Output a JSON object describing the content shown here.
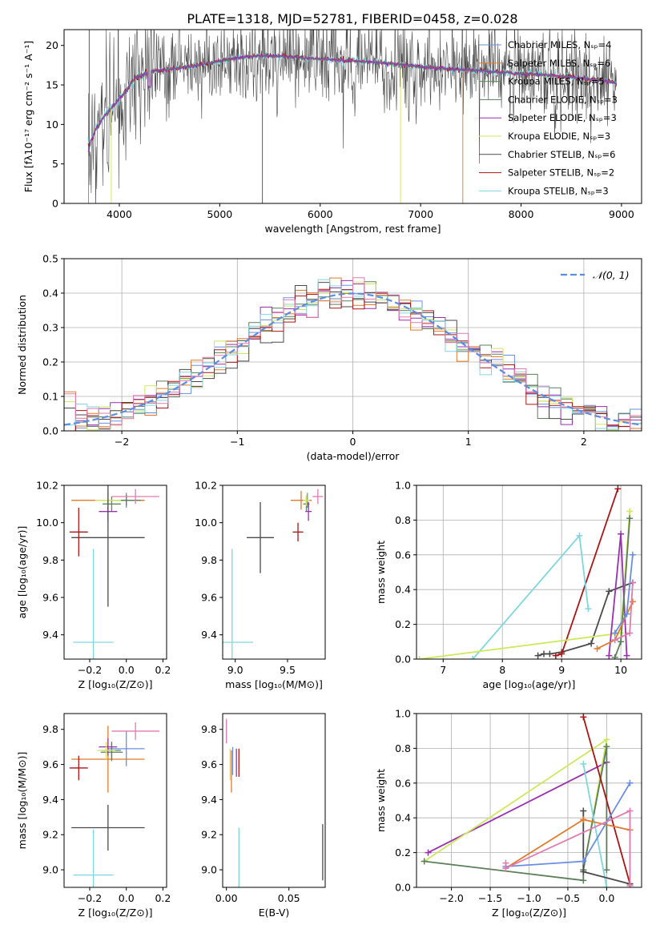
{
  "colors": {
    "Chabrier MILES": "#6a8fe0",
    "Salpeter MILES": "#e07a2a",
    "Kroupa MILES": "#5a8a5a",
    "Chabrier ELODIE": "#5a7f5a",
    "Salpeter ELODIE": "#9a2fb0",
    "Kroupa ELODIE": "#cde85a",
    "Chabrier STELIB": "#4a4a4a",
    "Salpeter STELIB": "#aa1515",
    "Kroupa STELIB": "#7fd6de",
    "pink": "#e07ab0",
    "gauss": "#5b8de0"
  },
  "chart_data": [
    {
      "id": "spectrum",
      "type": "line",
      "title": "PLATE=1318, MJD=52781, FIBERID=0458, z=0.028",
      "xlabel": "wavelength [Angstrom, rest frame]",
      "ylabel": "Flux [fλ10⁻¹⁷ erg cm⁻² s⁻¹ A⁻¹]",
      "xlim": [
        3450,
        9200
      ],
      "ylim": [
        0,
        22
      ],
      "xticks": [
        "4000",
        "5000",
        "6000",
        "7000",
        "8000",
        "9000"
      ],
      "yticks": [
        "0",
        "5",
        "10",
        "15",
        "20"
      ],
      "grid": false,
      "legend_position": "top-right",
      "legend": [
        "Chabrier MILES, Nₛₚ=4",
        "Salpeter MILES, Nₛₚ=6",
        "Kroupa MILES, Nₛₚ=5",
        "Chabrier ELODIE, Nₛₚ=3",
        "Salpeter ELODIE, Nₛₚ=3",
        "Kroupa ELODIE, Nₛₚ=3",
        "Chabrier STELIB, Nₛₚ=6",
        "Salpeter STELIB, Nₛₚ=2",
        "Kroupa STELIB, Nₛₚ=3"
      ],
      "continuum": {
        "x": [
          3690,
          3750,
          3850,
          3950,
          4050,
          4150,
          4300,
          4500,
          4700,
          4900,
          5100,
          5300,
          5500,
          5800,
          6100,
          6400,
          6700,
          7000,
          7300,
          7600,
          7900,
          8200,
          8500,
          8800,
          8950
        ],
        "y": [
          7,
          9,
          11,
          12.5,
          14,
          15.8,
          16.7,
          17,
          17.3,
          17.8,
          18.3,
          18.6,
          18.7,
          18.5,
          18.2,
          18,
          17.7,
          17.3,
          17,
          16.8,
          16.5,
          16.3,
          16,
          15.6,
          15.2
        ]
      }
    },
    {
      "id": "residuals",
      "type": "histogram",
      "xlabel": "(data-model)/error",
      "ylabel": "Normed distribution",
      "xlim": [
        -2.5,
        2.5
      ],
      "ylim": [
        0,
        0.5
      ],
      "xticks": [
        "−2",
        "−1",
        "0",
        "1",
        "2"
      ],
      "yticks": [
        "0.0",
        "0.1",
        "0.2",
        "0.3",
        "0.4",
        "0.5"
      ],
      "grid": true,
      "legend_position": "top-right",
      "legend": [
        "𝒩(0, 1)"
      ],
      "bin_width": 0.1
    },
    {
      "id": "age-vs-Z",
      "type": "errorbar",
      "xlabel": "Z [log₁₀(Z/Z⊙)]",
      "ylabel": "age  [log₁₀(age/yr)]",
      "xlim": [
        -0.34,
        0.22
      ],
      "ylim": [
        9.27,
        10.2
      ],
      "xticks": [
        "−0.2",
        "0.0",
        "0.2"
      ],
      "yticks": [
        "9.4",
        "9.6",
        "9.8",
        "10.0",
        "10.2"
      ],
      "points": [
        {
          "color": "Chabrier MILES",
          "x": 0.0,
          "y": 10.12,
          "xerr": 0.1,
          "yerr": 0.04
        },
        {
          "color": "Salpeter MILES",
          "x": -0.1,
          "y": 10.12,
          "xerr": 0.2,
          "yerr": 0.05
        },
        {
          "color": "Kroupa MILES",
          "x": -0.08,
          "y": 10.1,
          "xerr": 0.05,
          "yerr": 0.04
        },
        {
          "color": "Chabrier ELODIE",
          "x": 0.0,
          "y": 10.12,
          "xerr": 0.08,
          "yerr": 0.03
        },
        {
          "color": "Salpeter ELODIE",
          "x": -0.1,
          "y": 10.06,
          "xerr": 0.05,
          "yerr": 0.05
        },
        {
          "color": "Kroupa ELODIE",
          "x": -0.1,
          "y": 10.12,
          "xerr": 0.07,
          "yerr": 0.03
        },
        {
          "color": "pink",
          "x": 0.05,
          "y": 10.14,
          "xerr": 0.13,
          "yerr": 0.04
        },
        {
          "color": "Chabrier STELIB",
          "x": -0.1,
          "y": 9.92,
          "xerr": 0.2,
          "yerr": 0.37
        },
        {
          "color": "Salpeter STELIB",
          "x": -0.26,
          "y": 9.95,
          "xerr": 0.05,
          "yerr": 0.13
        },
        {
          "color": "Kroupa STELIB",
          "x": -0.18,
          "y": 9.36,
          "xerr": 0.11,
          "yerr": 0.5
        }
      ]
    },
    {
      "id": "age-vs-mass",
      "type": "errorbar",
      "xlabel": "mass [log₁₀(M/M⊙)]",
      "ylabel": "",
      "xlim": [
        8.88,
        9.86
      ],
      "ylim": [
        9.27,
        10.2
      ],
      "xticks": [
        "9.0",
        "9.5"
      ],
      "yticks": [
        "9.4",
        "9.6",
        "9.8",
        "10.0",
        "10.2"
      ],
      "points": [
        {
          "color": "Chabrier MILES",
          "x": 9.69,
          "y": 10.12,
          "xerr": 0.04,
          "yerr": 0.04
        },
        {
          "color": "Salpeter MILES",
          "x": 9.63,
          "y": 10.12,
          "xerr": 0.1,
          "yerr": 0.05
        },
        {
          "color": "Kroupa MILES",
          "x": 9.68,
          "y": 10.1,
          "xerr": 0.03,
          "yerr": 0.04
        },
        {
          "color": "Salpeter ELODIE",
          "x": 9.7,
          "y": 10.06,
          "xerr": 0.03,
          "yerr": 0.05
        },
        {
          "color": "Kroupa ELODIE",
          "x": 9.68,
          "y": 10.12,
          "xerr": 0.03,
          "yerr": 0.03
        },
        {
          "color": "pink",
          "x": 9.79,
          "y": 10.14,
          "xerr": 0.05,
          "yerr": 0.04
        },
        {
          "color": "Chabrier STELIB",
          "x": 9.24,
          "y": 9.92,
          "xerr": 0.13,
          "yerr": 0.19
        },
        {
          "color": "Salpeter STELIB",
          "x": 9.6,
          "y": 9.95,
          "xerr": 0.05,
          "yerr": 0.05
        },
        {
          "color": "Kroupa STELIB",
          "x": 8.97,
          "y": 9.36,
          "xerr": 0.2,
          "yerr": 0.5
        }
      ]
    },
    {
      "id": "weight-vs-age",
      "type": "line",
      "xlabel": "age  [log₁₀(age/yr)]",
      "ylabel": "mass weight",
      "xlim": [
        6.55,
        10.35
      ],
      "ylim": [
        0,
        1
      ],
      "xticks": [
        "7",
        "8",
        "9",
        "10"
      ],
      "yticks": [
        "0.0",
        "0.2",
        "0.4",
        "0.6",
        "0.8",
        "1.0"
      ],
      "grid": true,
      "series": [
        {
          "color": "Chabrier STELIB",
          "x": [
            8.6,
            8.7,
            8.8,
            9.0,
            9.5,
            9.8,
            10.2
          ],
          "y": [
            0.02,
            0.03,
            0.03,
            0.04,
            0.09,
            0.39,
            0.44
          ]
        },
        {
          "color": "Salpeter STELIB",
          "x": [
            8.9,
            9.0,
            9.95
          ],
          "y": [
            0.02,
            0.03,
            0.98
          ]
        },
        {
          "color": "Kroupa STELIB",
          "x": [
            7.5,
            9.3,
            9.45
          ],
          "y": [
            0.0,
            0.71,
            0.29
          ]
        },
        {
          "color": "Kroupa ELODIE",
          "x": [
            6.6,
            10.0,
            10.15
          ],
          "y": [
            0.0,
            0.15,
            0.85
          ]
        },
        {
          "color": "Salpeter ELODIE",
          "x": [
            9.8,
            10.0,
            10.1
          ],
          "y": [
            0.02,
            0.72,
            0.02
          ]
        },
        {
          "color": "Chabrier ELODIE",
          "x": [
            9.9,
            10.0,
            10.15
          ],
          "y": [
            0.01,
            0.1,
            0.81
          ]
        },
        {
          "color": "Salpeter MILES",
          "x": [
            9.6,
            9.9,
            10.2
          ],
          "y": [
            0.06,
            0.11,
            0.33
          ]
        },
        {
          "color": "Chabrier MILES",
          "x": [
            9.9,
            10.1,
            10.2
          ],
          "y": [
            0.15,
            0.26,
            0.6
          ]
        },
        {
          "color": "pink",
          "x": [
            9.9,
            10.15,
            10.2
          ],
          "y": [
            0.11,
            0.15,
            0.44
          ]
        }
      ]
    },
    {
      "id": "mass-vs-Z",
      "type": "errorbar",
      "xlabel": "Z [log₁₀(Z/Z⊙)]",
      "ylabel": "mass [log₁₀(M/M⊙)]",
      "xlim": [
        -0.34,
        0.22
      ],
      "ylim": [
        8.9,
        9.89
      ],
      "xticks": [
        "−0.2",
        "0.0",
        "0.2"
      ],
      "yticks": [
        "9.0",
        "9.2",
        "9.4",
        "9.6",
        "9.8"
      ],
      "points": [
        {
          "color": "Chabrier MILES",
          "x": 0.0,
          "y": 9.69,
          "xerr": 0.1,
          "yerr": 0.1
        },
        {
          "color": "Salpeter MILES",
          "x": -0.1,
          "y": 9.63,
          "xerr": 0.2,
          "yerr": 0.19
        },
        {
          "color": "Kroupa MILES",
          "x": -0.08,
          "y": 9.68,
          "xerr": 0.05,
          "yerr": 0.05
        },
        {
          "color": "Chabrier ELODIE",
          "x": -0.08,
          "y": 9.67,
          "xerr": 0.06,
          "yerr": 0.05
        },
        {
          "color": "Salpeter ELODIE",
          "x": -0.1,
          "y": 9.7,
          "xerr": 0.05,
          "yerr": 0.05
        },
        {
          "color": "Kroupa ELODIE",
          "x": -0.11,
          "y": 9.68,
          "xerr": 0.05,
          "yerr": 0.05
        },
        {
          "color": "pink",
          "x": 0.05,
          "y": 9.79,
          "xerr": 0.13,
          "yerr": 0.05
        },
        {
          "color": "Chabrier STELIB",
          "x": -0.1,
          "y": 9.24,
          "xerr": 0.2,
          "yerr": 0.13
        },
        {
          "color": "Salpeter STELIB",
          "x": -0.26,
          "y": 9.58,
          "xerr": 0.05,
          "yerr": 0.07
        },
        {
          "color": "Kroupa STELIB",
          "x": -0.18,
          "y": 8.97,
          "xerr": 0.11,
          "yerr": 0.26
        }
      ]
    },
    {
      "id": "mass-vs-ebv",
      "type": "errorbar",
      "xlabel": "E(B-V)",
      "ylabel": "",
      "xlim": [
        -0.003,
        0.079
      ],
      "ylim": [
        8.9,
        9.89
      ],
      "xticks": [
        "0.00",
        "0.05"
      ],
      "yticks": [
        "9.0",
        "9.2",
        "9.4",
        "9.6",
        "9.8"
      ],
      "points": [
        {
          "color": "pink",
          "x": 0.0,
          "y": 9.79,
          "xerr": 0,
          "yerr": 0.07
        },
        {
          "color": "Kroupa ELODIE",
          "x": 0.003,
          "y": 9.6,
          "xerr": 0,
          "yerr": 0.09
        },
        {
          "color": "Salpeter MILES",
          "x": 0.004,
          "y": 9.56,
          "xerr": 0,
          "yerr": 0.12
        },
        {
          "color": "Chabrier MILES",
          "x": 0.005,
          "y": 9.62,
          "xerr": 0,
          "yerr": 0.08
        },
        {
          "color": "Salpeter ELODIE",
          "x": 0.008,
          "y": 9.61,
          "xerr": 0,
          "yerr": 0.08
        },
        {
          "color": "Salpeter STELIB",
          "x": 0.01,
          "y": 9.61,
          "xerr": 0,
          "yerr": 0.08
        },
        {
          "color": "Kroupa STELIB",
          "x": 0.01,
          "y": 9.06,
          "xerr": 0,
          "yerr": 0.18
        },
        {
          "color": "Chabrier STELIB",
          "x": 0.077,
          "y": 9.1,
          "xerr": 0,
          "yerr": 0.16
        }
      ]
    },
    {
      "id": "weight-vs-Z",
      "type": "line",
      "xlabel": "Z [log₁₀(Z/Z⊙)]",
      "ylabel": "mass weight",
      "xlim": [
        -2.45,
        0.45
      ],
      "ylim": [
        0,
        1
      ],
      "xticks": [
        "−2.0",
        "−1.5",
        "−1.0",
        "−0.5",
        "0.0"
      ],
      "yticks": [
        "0.0",
        "0.2",
        "0.4",
        "0.6",
        "0.8",
        "1.0"
      ],
      "grid": true,
      "series": [
        {
          "color": "Salpeter ELODIE",
          "x": [
            -2.3,
            0.0
          ],
          "y": [
            0.2,
            0.72
          ]
        },
        {
          "color": "Kroupa ELODIE",
          "x": [
            -2.35,
            0.0,
            -0.3
          ],
          "y": [
            0.15,
            0.85,
            0.1
          ]
        },
        {
          "color": "Chabrier ELODIE",
          "x": [
            -2.35,
            -0.3,
            -0.3,
            0.0,
            0.0
          ],
          "y": [
            0.15,
            0.04,
            0.1,
            0.81,
            0.1
          ]
        },
        {
          "color": "Salpeter STELIB",
          "x": [
            -0.3,
            0.3
          ],
          "y": [
            0.98,
            0.02
          ]
        },
        {
          "color": "Kroupa STELIB",
          "x": [
            -0.3,
            0.0
          ],
          "y": [
            0.71,
            0.0
          ]
        },
        {
          "color": "Chabrier STELIB",
          "x": [
            -0.3,
            -0.3,
            0.3
          ],
          "y": [
            0.44,
            0.09,
            0.02
          ]
        },
        {
          "color": "Salpeter MILES",
          "x": [
            -1.3,
            -0.3,
            0.3
          ],
          "y": [
            0.11,
            0.39,
            0.33
          ]
        },
        {
          "color": "Chabrier MILES",
          "x": [
            -1.3,
            -0.3,
            0.3
          ],
          "y": [
            0.12,
            0.15,
            0.6
          ]
        },
        {
          "color": "pink",
          "x": [
            -1.3,
            -1.3,
            0.3,
            0.3
          ],
          "y": [
            0.14,
            0.11,
            0.44,
            0.01
          ]
        }
      ]
    }
  ]
}
